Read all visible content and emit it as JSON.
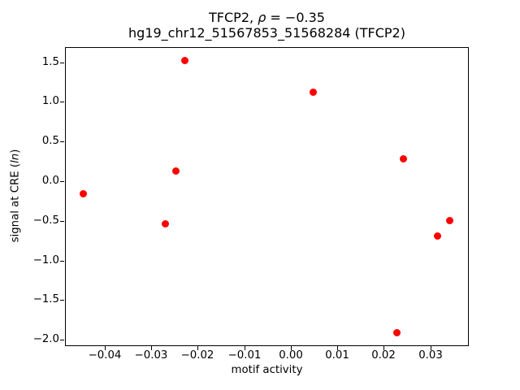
{
  "title": {
    "prefix": "TFCP2, ",
    "rho": "ρ",
    "rest": " = −0.35",
    "line2": "hg19_chr12_51567853_51568284 (TFCP2)"
  },
  "axes": {
    "xlabel": "motif activity",
    "ylabel_prefix": "signal at CRE (",
    "ylabel_italic": "ln",
    "ylabel_suffix": ")"
  },
  "chart_data": {
    "type": "scatter",
    "title": "TFCP2, ρ = −0.35\nhg19_chr12_51567853_51568284 (TFCP2)",
    "xlabel": "motif activity",
    "ylabel": "signal at CRE (ln)",
    "marker_color": "#ff0000",
    "marker_shape": "circle",
    "grid": false,
    "xlim": [
      -0.0485,
      0.0381
    ],
    "ylim": [
      -2.07,
      1.69
    ],
    "xticks": [
      {
        "v": -0.04,
        "label": "−0.04"
      },
      {
        "v": -0.03,
        "label": "−0.03"
      },
      {
        "v": -0.02,
        "label": "−0.02"
      },
      {
        "v": -0.01,
        "label": "−0.01"
      },
      {
        "v": 0.0,
        "label": "0.00"
      },
      {
        "v": 0.01,
        "label": "0.01"
      },
      {
        "v": 0.02,
        "label": "0.02"
      },
      {
        "v": 0.03,
        "label": "0.03"
      }
    ],
    "yticks": [
      {
        "v": 1.5,
        "label": "1.5"
      },
      {
        "v": 1.0,
        "label": "1.0"
      },
      {
        "v": 0.5,
        "label": "0.5"
      },
      {
        "v": 0.0,
        "label": "0.0"
      },
      {
        "v": -0.5,
        "label": "−0.5"
      },
      {
        "v": -1.0,
        "label": "−1.0"
      },
      {
        "v": -1.5,
        "label": "−1.5"
      },
      {
        "v": -2.0,
        "label": "−2.0"
      }
    ],
    "points": [
      {
        "x": -0.0446,
        "y": -0.16
      },
      {
        "x": -0.027,
        "y": -0.54
      },
      {
        "x": -0.0247,
        "y": 0.13
      },
      {
        "x": -0.0227,
        "y": 1.52
      },
      {
        "x": 0.0048,
        "y": 1.12
      },
      {
        "x": 0.0229,
        "y": -1.91
      },
      {
        "x": 0.0243,
        "y": 0.28
      },
      {
        "x": 0.0315,
        "y": -0.69
      },
      {
        "x": 0.0342,
        "y": -0.5
      }
    ]
  }
}
